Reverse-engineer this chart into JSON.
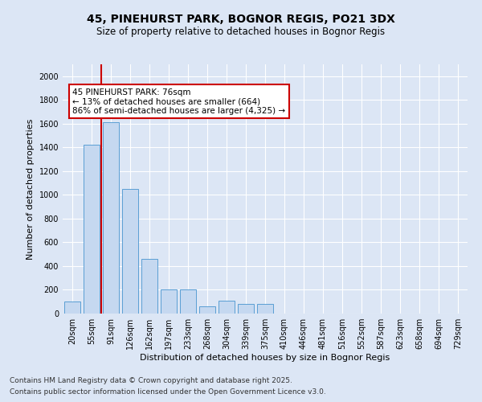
{
  "title1": "45, PINEHURST PARK, BOGNOR REGIS, PO21 3DX",
  "title2": "Size of property relative to detached houses in Bognor Regis",
  "xlabel": "Distribution of detached houses by size in Bognor Regis",
  "ylabel": "Number of detached properties",
  "categories": [
    "20sqm",
    "55sqm",
    "91sqm",
    "126sqm",
    "162sqm",
    "197sqm",
    "233sqm",
    "268sqm",
    "304sqm",
    "339sqm",
    "375sqm",
    "410sqm",
    "446sqm",
    "481sqm",
    "516sqm",
    "552sqm",
    "587sqm",
    "623sqm",
    "658sqm",
    "694sqm",
    "729sqm"
  ],
  "values": [
    100,
    1420,
    1610,
    1050,
    460,
    200,
    200,
    60,
    110,
    80,
    80,
    0,
    0,
    0,
    0,
    0,
    0,
    0,
    0,
    0,
    0
  ],
  "bar_color": "#c5d8f0",
  "bar_edge_color": "#5a9fd4",
  "vline_x": 1.5,
  "vline_color": "#cc0000",
  "annotation_text": "45 PINEHURST PARK: 76sqm\n← 13% of detached houses are smaller (664)\n86% of semi-detached houses are larger (4,325) →",
  "annotation_box_color": "#ffffff",
  "annotation_box_edge": "#cc0000",
  "ylim": [
    0,
    2100
  ],
  "yticks": [
    0,
    200,
    400,
    600,
    800,
    1000,
    1200,
    1400,
    1600,
    1800,
    2000
  ],
  "footer1": "Contains HM Land Registry data © Crown copyright and database right 2025.",
  "footer2": "Contains public sector information licensed under the Open Government Licence v3.0.",
  "bg_color": "#dce6f5",
  "plot_bg_color": "#dce6f5",
  "title_fontsize": 10,
  "subtitle_fontsize": 8.5,
  "axis_label_fontsize": 8,
  "tick_fontsize": 7,
  "footer_fontsize": 6.5,
  "annotation_fontsize": 7.5
}
